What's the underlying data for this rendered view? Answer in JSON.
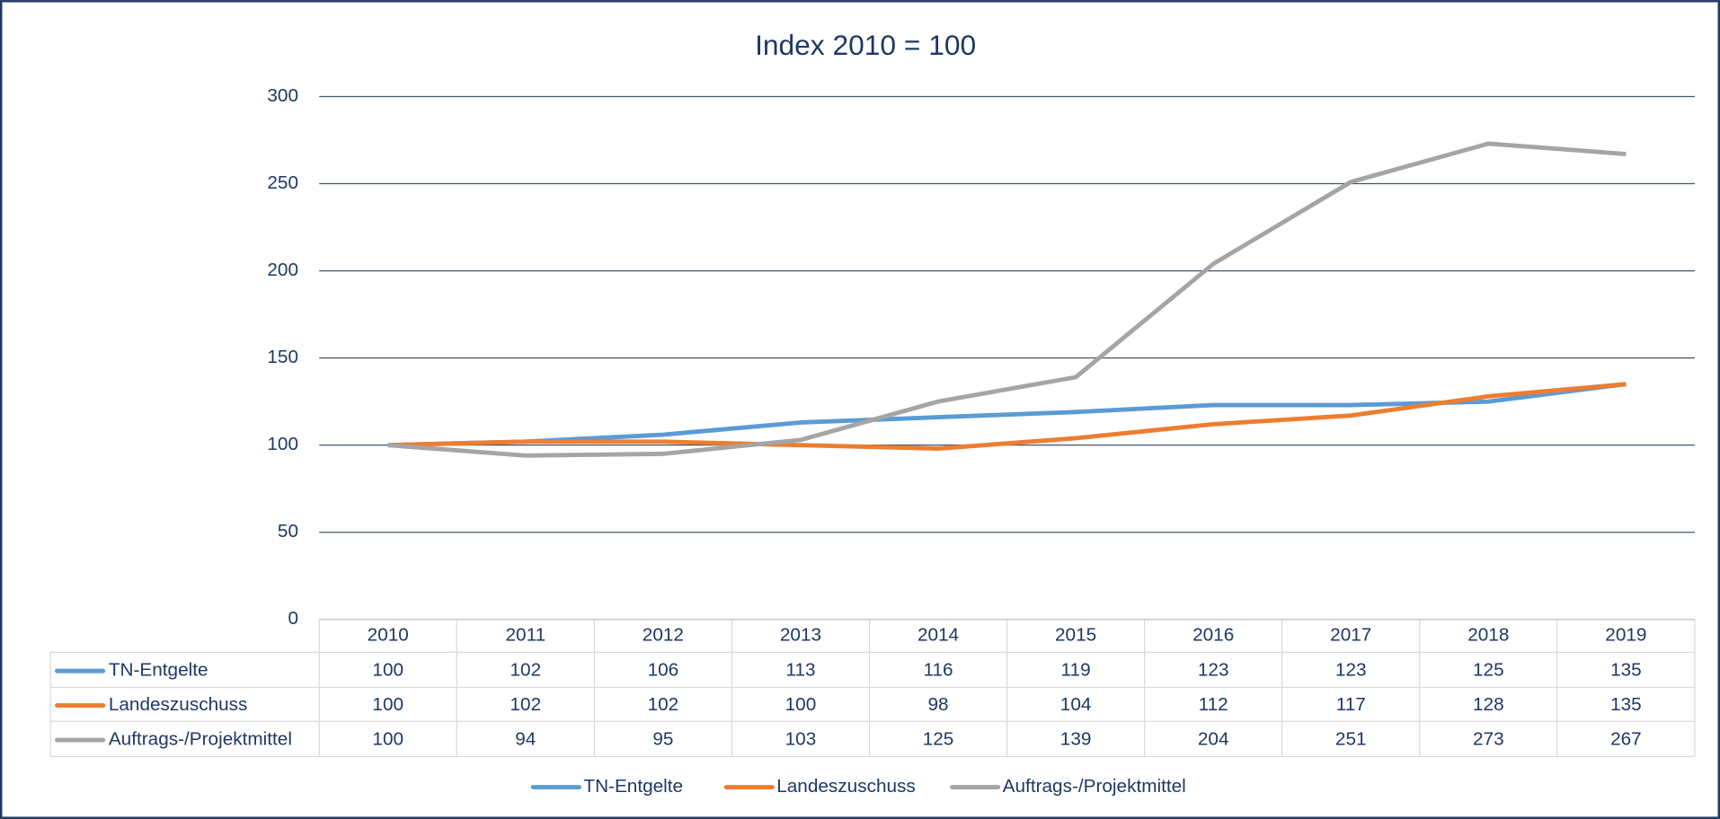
{
  "chart_data": {
    "type": "line",
    "title": "Index 2010 = 100",
    "categories": [
      "2010",
      "2011",
      "2012",
      "2013",
      "2014",
      "2015",
      "2016",
      "2017",
      "2018",
      "2019"
    ],
    "series": [
      {
        "name": "TN-Entgelte",
        "color": "#5b9bd5",
        "values": [
          100,
          102,
          106,
          113,
          116,
          119,
          123,
          123,
          125,
          135
        ]
      },
      {
        "name": "Landeszuschuss",
        "color": "#ed7d31",
        "values": [
          100,
          102,
          102,
          100,
          98,
          104,
          112,
          117,
          128,
          135
        ]
      },
      {
        "name": "Auftrags-/Projektmittel",
        "color": "#a5a5a5",
        "values": [
          100,
          94,
          95,
          103,
          125,
          139,
          204,
          251,
          273,
          267
        ]
      }
    ],
    "ylim": [
      0,
      300
    ],
    "yticks": [
      0,
      50,
      100,
      150,
      200,
      250,
      300
    ],
    "grid": true,
    "legend": "bottom",
    "data_table": true
  }
}
